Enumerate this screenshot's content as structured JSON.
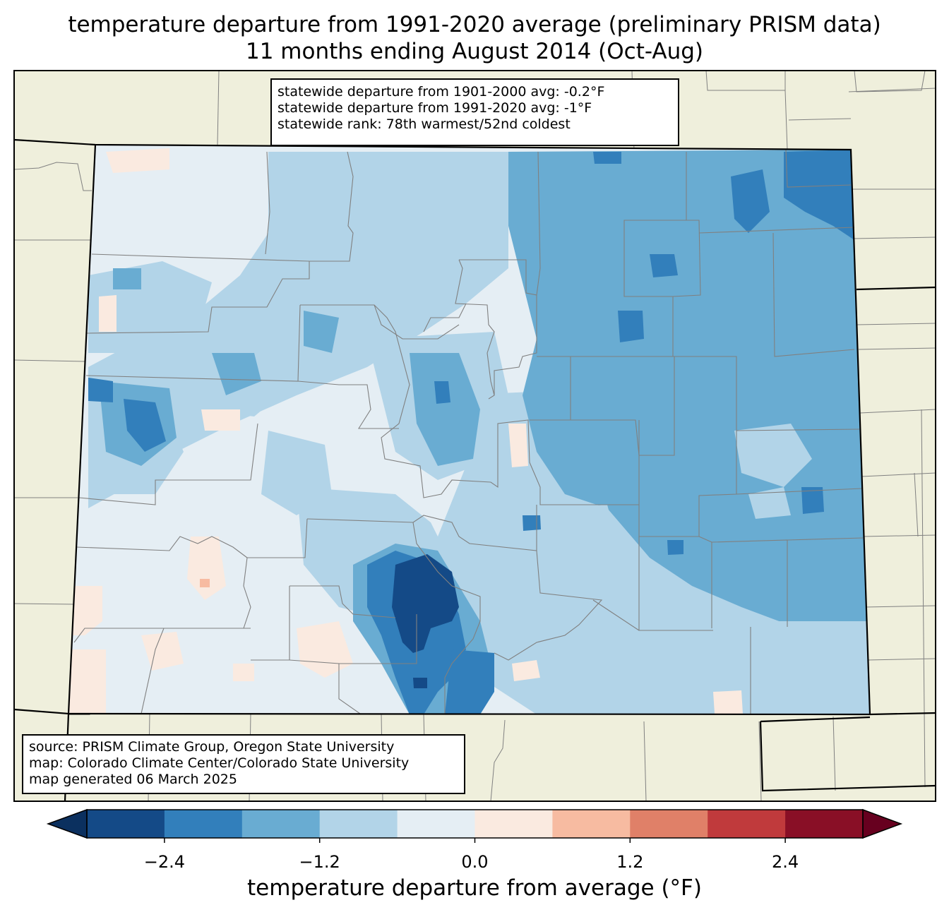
{
  "title": {
    "line1": "temperature departure from 1991-2020 average (preliminary PRISM data)",
    "line2": "11 months ending August 2014 (Oct-Aug)"
  },
  "stats": {
    "line1": "statewide departure from 1901-2000 avg: -0.2°F",
    "line2": "statewide departure from 1991-2020 avg: -1°F",
    "line3": "statewide rank: 78th warmest/52nd coldest"
  },
  "source": {
    "line1": "source: PRISM Climate Group, Oregon State University",
    "line2": "map: Colorado Climate Center/Colorado State University",
    "line3": "map generated 06 March 2025"
  },
  "colorbar": {
    "label": "temperature departure from average (°F)",
    "ticks": [
      "−2.4",
      "−1.2",
      "0.0",
      "1.2",
      "2.4"
    ],
    "tick_values": [
      -2.4,
      -1.2,
      0.0,
      1.2,
      2.4
    ],
    "bounds": [
      -3.0,
      -2.4,
      -1.8,
      -1.2,
      -0.6,
      0.0,
      0.6,
      1.2,
      1.8,
      2.4,
      3.0
    ],
    "colors": [
      "#144a87",
      "#327fbb",
      "#69acd2",
      "#b2d4e8",
      "#e5eef4",
      "#faeae0",
      "#f7bba1",
      "#e08068",
      "#c03a3c",
      "#890f26"
    ],
    "under_color": "#0b305f",
    "over_color": "#67001f"
  },
  "map_colors": {
    "background": "#efefdc",
    "county_lines": "#808080",
    "state_lines": "#000000"
  }
}
